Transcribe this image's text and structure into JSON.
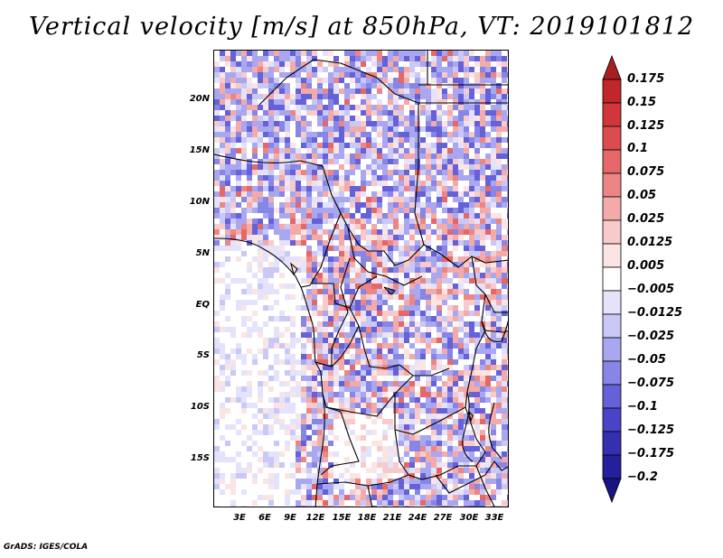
{
  "title": "Vertical velocity [m/s] at 850hPa, VT: 2019101812",
  "map": {
    "lat_labels": [
      "20N",
      "15N",
      "10N",
      "5N",
      "EQ",
      "5S",
      "10S",
      "15S"
    ],
    "lon_labels": [
      "3E",
      "6E",
      "9E",
      "12E",
      "15E",
      "18E",
      "21E",
      "24E",
      "27E",
      "30E",
      "33E"
    ]
  },
  "colorbar": {
    "levels": [
      "0.175",
      "0.15",
      "0.125",
      "0.1",
      "0.075",
      "0.05",
      "0.025",
      "0.0125",
      "0.005",
      "−0.005",
      "−0.0125",
      "−0.025",
      "−0.05",
      "−0.075",
      "−0.1",
      "−0.125",
      "−0.175",
      "−0.2"
    ],
    "colors": [
      "#a81f22",
      "#c1262a",
      "#d1363a",
      "#dc4c4e",
      "#e46867",
      "#ec8685",
      "#f4aaa9",
      "#f8caca",
      "#fbe4e4",
      "#ffffff",
      "#e4e3fb",
      "#c9c8f6",
      "#a9a7ef",
      "#8785e6",
      "#6461d9",
      "#4844c8",
      "#3430b2",
      "#241f9a",
      "#1a1480"
    ]
  },
  "credit": "GrADS: IGES/COLA"
}
